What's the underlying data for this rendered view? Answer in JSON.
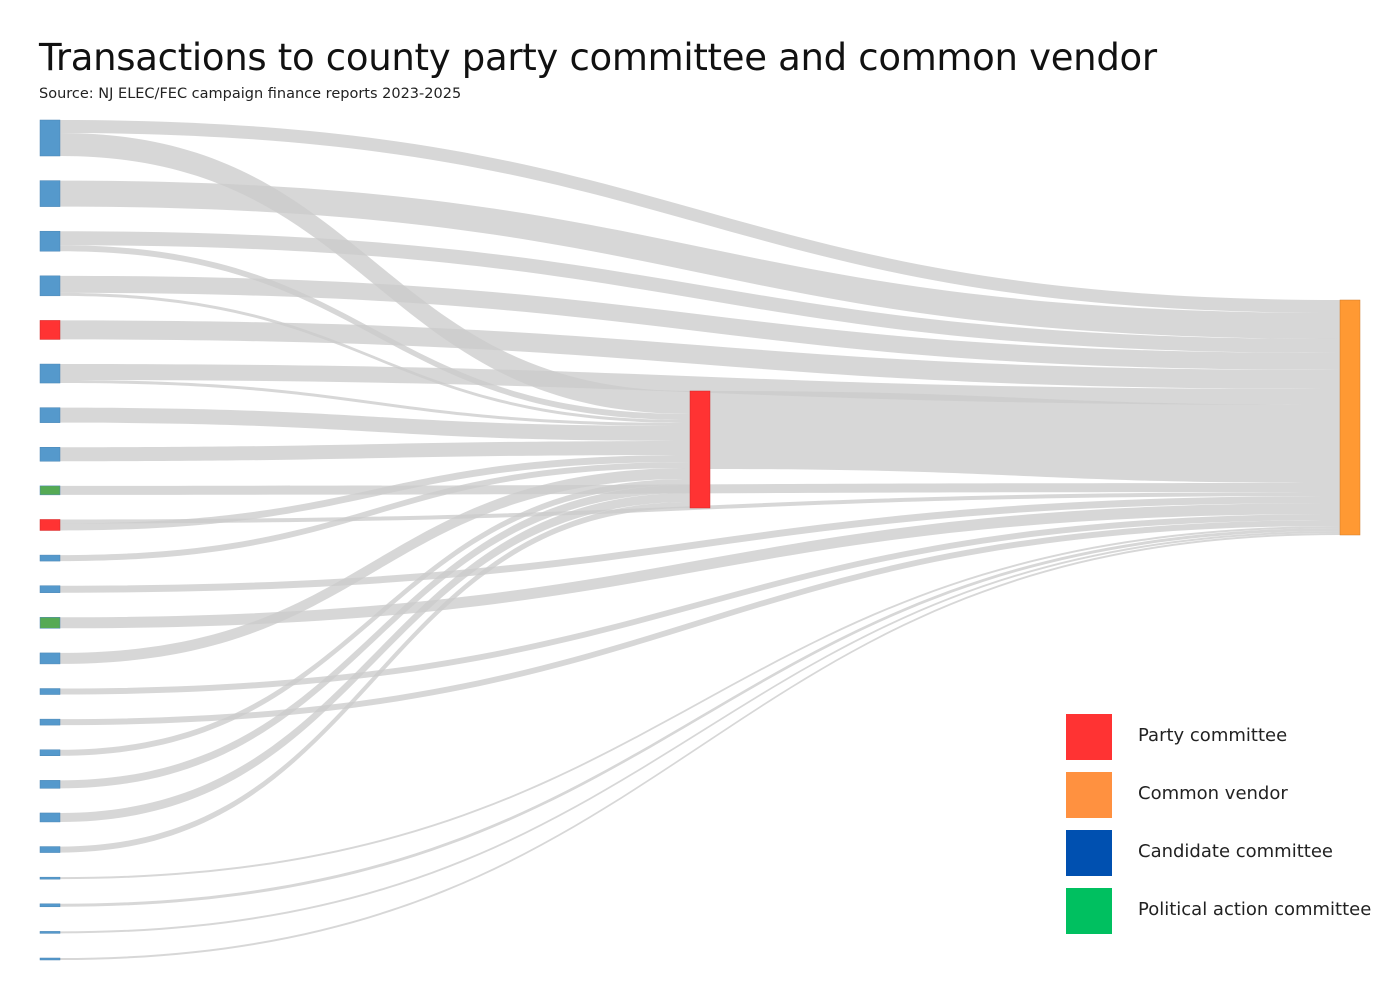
{
  "title": "Transactions to county party committee and common vendor",
  "subtitle": "Source: NJ ELEC/FEC campaign finance reports 2023-2025",
  "colors": {
    "party_committee": "#ff3333",
    "common_vendor": "#ff9140",
    "candidate_committee": "#0050b0",
    "political_action_committee": "#00c060",
    "candidate_node": "#5599cc",
    "pac_node": "#55aa55",
    "party_node": "#ff3333",
    "vendor_node": "#ff9933",
    "link": "#cccccc"
  },
  "legend": [
    {
      "label": "Party committee",
      "color": "#ff3333"
    },
    {
      "label": "Common vendor",
      "color": "#ff9140"
    },
    {
      "label": "Candidate committee",
      "color": "#0050b0"
    },
    {
      "label": "Political action committee",
      "color": "#00c060"
    }
  ],
  "chart_data": {
    "type": "sankey",
    "nodes": [
      {
        "id": "s0",
        "category": "candidate"
      },
      {
        "id": "s1",
        "category": "candidate"
      },
      {
        "id": "s2",
        "category": "candidate"
      },
      {
        "id": "s3",
        "category": "candidate"
      },
      {
        "id": "s4",
        "category": "party"
      },
      {
        "id": "s5",
        "category": "candidate"
      },
      {
        "id": "s6",
        "category": "candidate"
      },
      {
        "id": "s7",
        "category": "candidate"
      },
      {
        "id": "s8",
        "category": "pac"
      },
      {
        "id": "s9",
        "category": "party"
      },
      {
        "id": "s10",
        "category": "candidate"
      },
      {
        "id": "s11",
        "category": "candidate"
      },
      {
        "id": "s12",
        "category": "pac"
      },
      {
        "id": "s13",
        "category": "candidate"
      },
      {
        "id": "s14",
        "category": "candidate"
      },
      {
        "id": "s15",
        "category": "candidate"
      },
      {
        "id": "s16",
        "category": "candidate"
      },
      {
        "id": "s17",
        "category": "candidate"
      },
      {
        "id": "s18",
        "category": "candidate"
      },
      {
        "id": "s19",
        "category": "candidate"
      },
      {
        "id": "s20",
        "category": "candidate"
      },
      {
        "id": "s21",
        "category": "candidate"
      },
      {
        "id": "s22",
        "category": "candidate"
      },
      {
        "id": "s23",
        "category": "candidate"
      },
      {
        "id": "county",
        "category": "party"
      },
      {
        "id": "vendor",
        "category": "vendor"
      }
    ],
    "links": [
      {
        "source": "s0",
        "target": "vendor",
        "value": 13
      },
      {
        "source": "s0",
        "target": "county",
        "value": 23
      },
      {
        "source": "s1",
        "target": "vendor",
        "value": 26
      },
      {
        "source": "s2",
        "target": "vendor",
        "value": 14
      },
      {
        "source": "s2",
        "target": "county",
        "value": 6
      },
      {
        "source": "s3",
        "target": "vendor",
        "value": 17
      },
      {
        "source": "s3",
        "target": "county",
        "value": 3
      },
      {
        "source": "s4",
        "target": "vendor",
        "value": 19
      },
      {
        "source": "s5",
        "target": "vendor",
        "value": 16
      },
      {
        "source": "s5",
        "target": "county",
        "value": 3
      },
      {
        "source": "s6",
        "target": "county",
        "value": 15
      },
      {
        "source": "s7",
        "target": "county",
        "value": 14
      },
      {
        "source": "s8",
        "target": "vendor",
        "value": 9
      },
      {
        "source": "s9",
        "target": "vendor",
        "value": 4
      },
      {
        "source": "s9",
        "target": "county",
        "value": 7
      },
      {
        "source": "s10",
        "target": "county",
        "value": 6
      },
      {
        "source": "s11",
        "target": "vendor",
        "value": 7
      },
      {
        "source": "s12",
        "target": "vendor",
        "value": 11
      },
      {
        "source": "s13",
        "target": "county",
        "value": 11
      },
      {
        "source": "s14",
        "target": "vendor",
        "value": 6
      },
      {
        "source": "s15",
        "target": "vendor",
        "value": 6
      },
      {
        "source": "s16",
        "target": "county",
        "value": 6
      },
      {
        "source": "s17",
        "target": "county",
        "value": 8
      },
      {
        "source": "s18",
        "target": "county",
        "value": 9
      },
      {
        "source": "s19",
        "target": "county",
        "value": 6
      },
      {
        "source": "s20",
        "target": "vendor",
        "value": 2
      },
      {
        "source": "s21",
        "target": "vendor",
        "value": 3
      },
      {
        "source": "s22",
        "target": "vendor",
        "value": 2
      },
      {
        "source": "s23",
        "target": "vendor",
        "value": 2
      },
      {
        "source": "county",
        "target": "vendor",
        "value": 78
      }
    ]
  }
}
